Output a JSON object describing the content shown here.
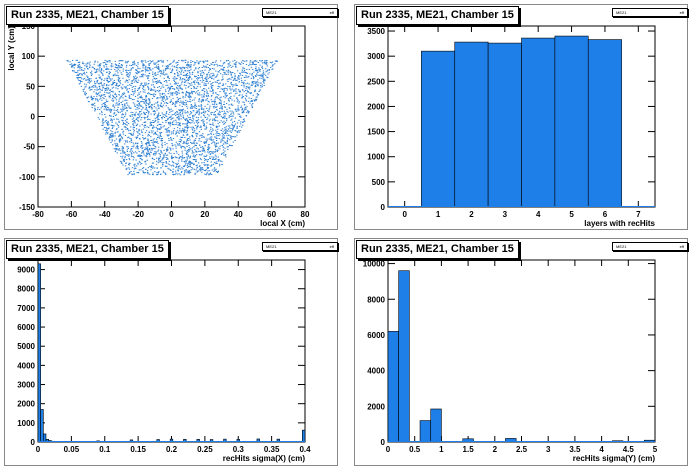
{
  "chart_data": [
    {
      "type": "scatter",
      "title": "Run 2335, ME21, Chamber 15",
      "stats": {
        "name": "ME21",
        "entries": "eff"
      },
      "xlabel": "local X (cm)",
      "ylabel": "local Y (cm)",
      "xlim": [
        -80,
        80
      ],
      "ylim": [
        -150,
        150
      ],
      "xticks": [
        "-80",
        "-60",
        "-40",
        "-20",
        "0",
        "20",
        "40",
        "60",
        "80"
      ],
      "yticks": [
        "-150",
        "-100",
        "-50",
        "0",
        "50",
        "100",
        "150"
      ],
      "shape": {
        "top_y": 93,
        "bottom_y": -95,
        "top_half_width": 63,
        "bottom_half_width": 27
      },
      "color": "#2e7fd0"
    },
    {
      "type": "bar",
      "title": "Run 2335, ME21, Chamber 15",
      "stats": {
        "name": "ME21",
        "entries": "eff"
      },
      "xlabel": "layers with recHits",
      "ylabel": "",
      "xlim": [
        -0.5,
        7.5
      ],
      "ylim": [
        0,
        3600
      ],
      "xticks": [
        "0",
        "1",
        "2",
        "3",
        "4",
        "5",
        "6",
        "7"
      ],
      "yticks": [
        "0",
        "500",
        "1000",
        "1500",
        "2000",
        "2500",
        "3000",
        "3500"
      ],
      "bin_width": 1,
      "x": [
        1,
        2,
        3,
        4,
        5,
        6
      ],
      "values": [
        3100,
        3280,
        3260,
        3360,
        3400,
        3330
      ],
      "color": "#1e7fe8"
    },
    {
      "type": "bar",
      "title": "Run 2335, ME21, Chamber 15",
      "stats": {
        "name": "ME21",
        "entries": "eff"
      },
      "xlabel": "recHits sigma(X) (cm)",
      "ylabel": "",
      "xlim": [
        0,
        0.4
      ],
      "ylim": [
        0,
        9500
      ],
      "xticks": [
        "0",
        "0.05",
        "0.1",
        "0.15",
        "0.2",
        "0.25",
        "0.3",
        "0.35",
        "0.4"
      ],
      "yticks": [
        "0",
        "1000",
        "2000",
        "3000",
        "4000",
        "5000",
        "6000",
        "7000",
        "8000",
        "9000"
      ],
      "bin_width": 0.004,
      "x": [
        0.002,
        0.006,
        0.01,
        0.014,
        0.018,
        0.022,
        0.03,
        0.09,
        0.14,
        0.18,
        0.2,
        0.22,
        0.24,
        0.26,
        0.28,
        0.3,
        0.33,
        0.36,
        0.398
      ],
      "values": [
        9300,
        1700,
        420,
        140,
        80,
        40,
        25,
        60,
        110,
        130,
        150,
        140,
        140,
        130,
        150,
        140,
        160,
        150,
        620
      ],
      "color": "#1e7fe8"
    },
    {
      "type": "bar",
      "title": "Run 2335, ME21, Chamber 15",
      "stats": {
        "name": "ME21",
        "entries": "eff"
      },
      "xlabel": "recHits sigma(Y) (cm)",
      "ylabel": "",
      "xlim": [
        0,
        5
      ],
      "ylim": [
        0,
        10200
      ],
      "xticks": [
        "0",
        "0.5",
        "1",
        "1.5",
        "2",
        "2.5",
        "3",
        "3.5",
        "4",
        "4.5",
        "5"
      ],
      "yticks": [
        "0",
        "2000",
        "4000",
        "6000",
        "8000",
        "10000"
      ],
      "bin_width": 0.2,
      "x": [
        0.1,
        0.3,
        0.5,
        0.7,
        0.9,
        1.5,
        2.3,
        3.1,
        4.3,
        4.9
      ],
      "values": [
        6200,
        9600,
        0,
        1200,
        1850,
        180,
        200,
        40,
        70,
        100
      ],
      "color": "#1e7fe8"
    }
  ]
}
